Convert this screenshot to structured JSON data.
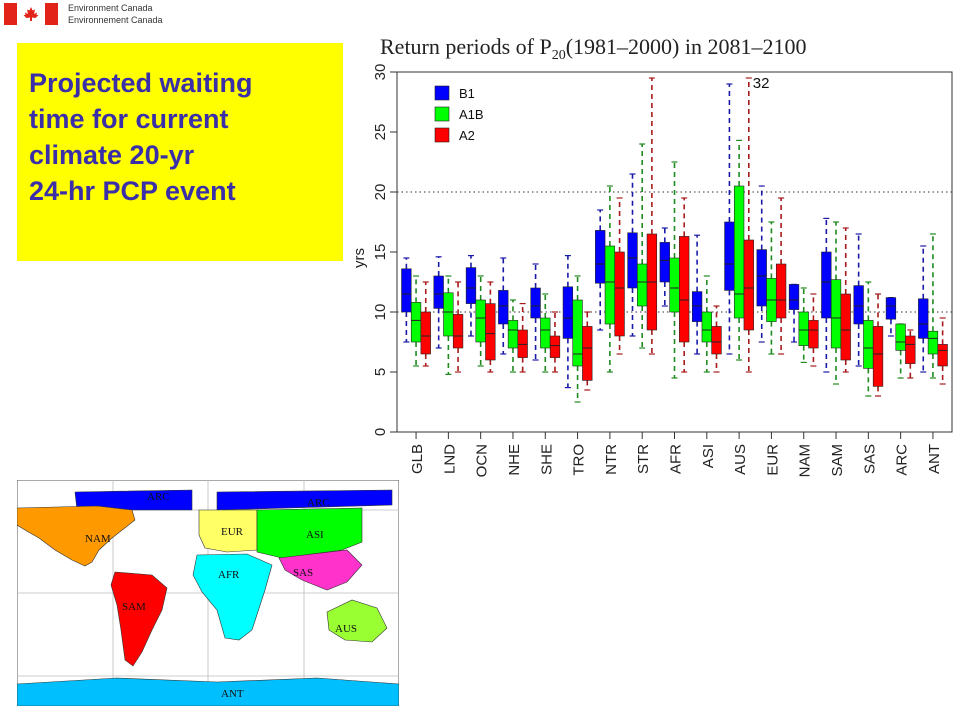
{
  "header": {
    "org_line1": "Environment Canada",
    "org_line2": "Environnement Canada"
  },
  "caption": {
    "line1": "Projected waiting",
    "line2": "time for current",
    "line3": "climate 20-yr",
    "line4": "24-hr PCP event"
  },
  "chart_data": {
    "type": "boxplot",
    "title_main": "Return periods of P",
    "title_sub": "20",
    "title_rest": "(1981–2000) in 2081–2100",
    "ylabel": "yrs",
    "ylim": [
      0,
      30
    ],
    "yticks": [
      0,
      5,
      10,
      15,
      20,
      25,
      30
    ],
    "reference_lines": [
      10,
      20
    ],
    "outside_label": "32",
    "categories": [
      "GLB",
      "LND",
      "OCN",
      "NHE",
      "SHE",
      "TRO",
      "NTR",
      "STR",
      "AFR",
      "ASI",
      "AUS",
      "EUR",
      "NAM",
      "SAM",
      "SAS",
      "ARC",
      "ANT"
    ],
    "series": [
      {
        "name": "B1",
        "color": "#0000ff",
        "dash_color": "#1a1aa8",
        "boxes": [
          {
            "min": 7.5,
            "q1": 10.0,
            "median": 11.5,
            "q3": 13.6,
            "max": 14.5
          },
          {
            "min": 7.0,
            "q1": 10.3,
            "median": 11.5,
            "q3": 13.0,
            "max": 14.6
          },
          {
            "min": 8.0,
            "q1": 10.7,
            "median": 12.0,
            "q3": 13.7,
            "max": 14.7
          },
          {
            "min": 6.5,
            "q1": 9.0,
            "median": 10.5,
            "q3": 11.8,
            "max": 14.5
          },
          {
            "min": 6.0,
            "q1": 9.5,
            "median": 10.5,
            "q3": 12.0,
            "max": 14.0
          },
          {
            "min": 3.7,
            "q1": 7.8,
            "median": 9.5,
            "q3": 12.1,
            "max": 14.7
          },
          {
            "min": 8.5,
            "q1": 12.4,
            "median": 14.0,
            "q3": 16.8,
            "max": 18.5
          },
          {
            "min": 8.0,
            "q1": 12.0,
            "median": 14.5,
            "q3": 16.6,
            "max": 21.5
          },
          {
            "min": 10.5,
            "q1": 12.5,
            "median": 14.3,
            "q3": 15.8,
            "max": 17.0
          },
          {
            "min": 6.5,
            "q1": 9.2,
            "median": 10.5,
            "q3": 11.7,
            "max": 16.4
          },
          {
            "min": 6.5,
            "q1": 11.8,
            "median": 14.0,
            "q3": 17.5,
            "max": 29.0
          },
          {
            "min": 7.5,
            "q1": 10.5,
            "median": 13.0,
            "q3": 15.2,
            "max": 20.5
          },
          {
            "min": 7.5,
            "q1": 10.2,
            "median": 11.0,
            "q3": 12.3,
            "max": 12.3
          },
          {
            "min": 5.0,
            "q1": 9.5,
            "median": 12.5,
            "q3": 15.0,
            "max": 17.8
          },
          {
            "min": 5.5,
            "q1": 9.0,
            "median": 10.5,
            "q3": 12.2,
            "max": 16.5
          },
          {
            "min": 8.0,
            "q1": 9.4,
            "median": 10.5,
            "q3": 11.2,
            "max": 11.2
          },
          {
            "min": 5.0,
            "q1": 7.8,
            "median": 9.0,
            "q3": 11.1,
            "max": 15.5
          }
        ]
      },
      {
        "name": "A1B",
        "color": "#00ff00",
        "dash_color": "#1f8a1f",
        "boxes": [
          {
            "min": 5.5,
            "q1": 7.5,
            "median": 9.3,
            "q3": 10.8,
            "max": 13.0
          },
          {
            "min": 4.8,
            "q1": 8.0,
            "median": 10.0,
            "q3": 11.6,
            "max": 13.0
          },
          {
            "min": 5.5,
            "q1": 7.5,
            "median": 9.5,
            "q3": 11.0,
            "max": 13.0
          },
          {
            "min": 5.0,
            "q1": 7.0,
            "median": 8.5,
            "q3": 9.3,
            "max": 11.0
          },
          {
            "min": 5.0,
            "q1": 7.0,
            "median": 8.5,
            "q3": 9.5,
            "max": 11.5
          },
          {
            "min": 2.5,
            "q1": 5.5,
            "median": 6.5,
            "q3": 11.0,
            "max": 13.0
          },
          {
            "min": 5.0,
            "q1": 9.0,
            "median": 12.5,
            "q3": 15.5,
            "max": 20.5
          },
          {
            "min": 7.0,
            "q1": 10.5,
            "median": 12.5,
            "q3": 14.0,
            "max": 24.0
          },
          {
            "min": 4.5,
            "q1": 10.0,
            "median": 12.0,
            "q3": 14.5,
            "max": 22.5
          },
          {
            "min": 5.0,
            "q1": 7.5,
            "median": 8.5,
            "q3": 10.0,
            "max": 13.0
          },
          {
            "min": 6.0,
            "q1": 9.5,
            "median": 11.5,
            "q3": 20.5,
            "max": 24.3
          },
          {
            "min": 6.5,
            "q1": 9.2,
            "median": 11.0,
            "q3": 12.8,
            "max": 17.5
          },
          {
            "min": 5.8,
            "q1": 7.2,
            "median": 8.5,
            "q3": 10.0,
            "max": 12.0
          },
          {
            "min": 4.0,
            "q1": 7.0,
            "median": 9.5,
            "q3": 12.7,
            "max": 17.5
          },
          {
            "min": 3.0,
            "q1": 5.3,
            "median": 7.0,
            "q3": 9.3,
            "max": 12.5
          },
          {
            "min": 4.5,
            "q1": 6.8,
            "median": 7.5,
            "q3": 9.0,
            "max": 9.0
          },
          {
            "min": 4.5,
            "q1": 6.5,
            "median": 7.8,
            "q3": 8.4,
            "max": 16.5
          }
        ]
      },
      {
        "name": "A2",
        "color": "#ff0000",
        "dash_color": "#a81a1a",
        "boxes": [
          {
            "min": 5.5,
            "q1": 6.5,
            "median": 8.0,
            "q3": 10.0,
            "max": 12.5
          },
          {
            "min": 5.0,
            "q1": 7.0,
            "median": 8.0,
            "q3": 9.8,
            "max": 12.5
          },
          {
            "min": 5.0,
            "q1": 6.0,
            "median": 8.2,
            "q3": 10.7,
            "max": 12.5
          },
          {
            "min": 5.0,
            "q1": 6.2,
            "median": 7.3,
            "q3": 8.5,
            "max": 10.7
          },
          {
            "min": 5.0,
            "q1": 6.2,
            "median": 7.2,
            "q3": 8.0,
            "max": 10.0
          },
          {
            "min": 3.5,
            "q1": 4.3,
            "median": 7.0,
            "q3": 8.8,
            "max": 10.0
          },
          {
            "min": 6.5,
            "q1": 8.0,
            "median": 12.0,
            "q3": 15.0,
            "max": 19.5
          },
          {
            "min": 6.5,
            "q1": 8.5,
            "median": 12.5,
            "q3": 16.5,
            "max": 29.5
          },
          {
            "min": 5.0,
            "q1": 7.5,
            "median": 11.0,
            "q3": 16.3,
            "max": 19.5
          },
          {
            "min": 5.0,
            "q1": 6.5,
            "median": 7.5,
            "q3": 8.8,
            "max": 10.5
          },
          {
            "min": 5.0,
            "q1": 8.5,
            "median": 12.0,
            "q3": 16.0,
            "max": 29.5
          },
          {
            "min": 6.5,
            "q1": 9.5,
            "median": 11.0,
            "q3": 14.0,
            "max": 19.5
          },
          {
            "min": 5.5,
            "q1": 7.0,
            "median": 8.5,
            "q3": 9.3,
            "max": 11.5
          },
          {
            "min": 5.0,
            "q1": 6.0,
            "median": 8.5,
            "q3": 11.5,
            "max": 17.0
          },
          {
            "min": 3.0,
            "q1": 3.8,
            "median": 6.5,
            "q3": 8.8,
            "max": 11.5
          },
          {
            "min": 4.5,
            "q1": 5.7,
            "median": 7.3,
            "q3": 8.0,
            "max": 8.5
          },
          {
            "min": 4.0,
            "q1": 5.5,
            "median": 6.8,
            "q3": 7.3,
            "max": 9.5
          }
        ]
      }
    ]
  },
  "map": {
    "regions": [
      {
        "label": "ARC",
        "color": "#0000ff"
      },
      {
        "label": "ARC",
        "color": "#0000ff"
      },
      {
        "label": "NAM",
        "color": "#ff9900"
      },
      {
        "label": "EUR",
        "color": "#ffff66"
      },
      {
        "label": "ASI",
        "color": "#00ff00"
      },
      {
        "label": "AFR",
        "color": "#00ffff"
      },
      {
        "label": "SAS",
        "color": "#ff33cc"
      },
      {
        "label": "SAM",
        "color": "#ff0000"
      },
      {
        "label": "AUS",
        "color": "#99ff33"
      },
      {
        "label": "ANT",
        "color": "#00bfff"
      }
    ]
  }
}
